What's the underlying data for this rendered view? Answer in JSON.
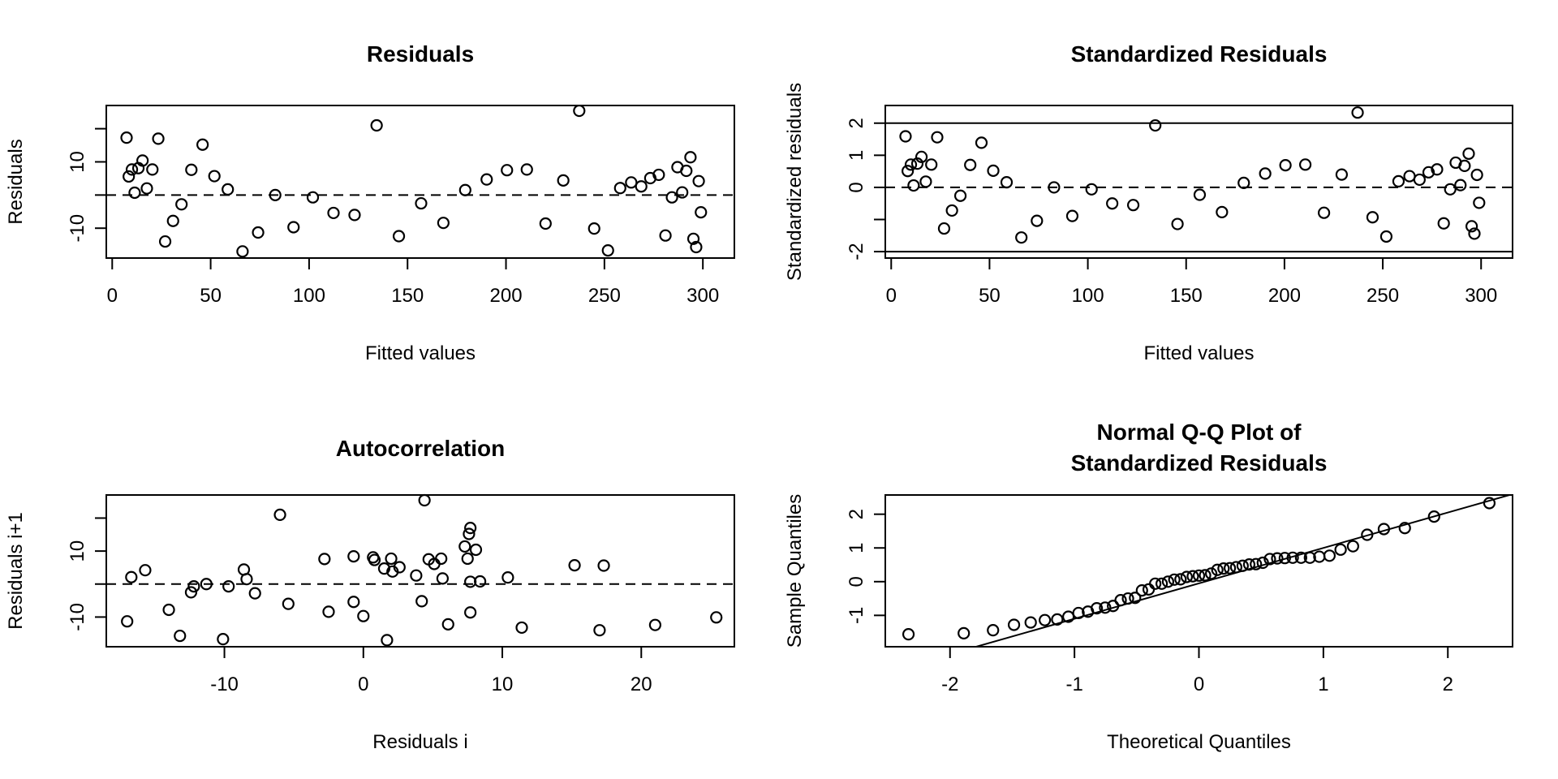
{
  "chart_data": [
    {
      "id": "residuals",
      "type": "scatter",
      "title": "Residuals",
      "xlabel": "Fitted values",
      "ylabel": "Residuals",
      "xlim": [
        -3,
        316
      ],
      "ylim": [
        -19,
        27
      ],
      "xticks": [
        0,
        50,
        100,
        150,
        200,
        250,
        300
      ],
      "xtick_labels": [
        "0",
        "50",
        "100",
        "150",
        "200",
        "250",
        "300"
      ],
      "yticks": [
        -10,
        0,
        10,
        20
      ],
      "ytick_labels": [
        "-10",
        "",
        "10",
        ""
      ],
      "hlines": [
        {
          "y": 0,
          "style": "dashed"
        }
      ],
      "x": [
        7.3,
        8.4,
        10.0,
        11.4,
        13.3,
        15.4,
        17.6,
        20.4,
        23.4,
        26.9,
        30.9,
        35.2,
        40.2,
        45.9,
        51.9,
        58.7,
        66.2,
        74.1,
        82.8,
        92.1,
        101.9,
        112.4,
        123.1,
        134.3,
        145.6,
        156.9,
        168.2,
        179.3,
        190.2,
        200.5,
        210.6,
        220.1,
        229.1,
        237.2,
        244.8,
        251.8,
        258.0,
        263.6,
        268.7,
        273.3,
        277.6,
        281.0,
        284.3,
        287.1,
        289.5,
        291.6,
        293.7,
        295.2,
        296.6,
        297.9,
        299.0
      ],
      "y": [
        17.3,
        5.6,
        7.7,
        0.7,
        8.1,
        10.4,
        2.0,
        7.7,
        17.0,
        -14.0,
        -7.8,
        -2.8,
        7.6,
        15.2,
        5.7,
        1.7,
        -17.0,
        -11.3,
        0.0,
        -9.7,
        -0.7,
        -5.4,
        -6.0,
        21.0,
        -12.4,
        -2.5,
        -8.4,
        1.5,
        4.7,
        7.5,
        7.7,
        -8.6,
        4.4,
        25.4,
        -10.1,
        -16.7,
        2.1,
        3.8,
        2.6,
        5.1,
        6.1,
        -12.2,
        -0.7,
        8.4,
        0.8,
        7.3,
        11.4,
        -13.2,
        -15.7,
        4.2,
        -5.2
      ]
    },
    {
      "id": "standardized",
      "type": "scatter",
      "title": "Standardized Residuals",
      "xlabel": "Fitted values",
      "ylabel": "Standardized residuals",
      "xlim": [
        -3,
        316
      ],
      "ylim": [
        -2.2,
        2.55
      ],
      "xticks": [
        0,
        50,
        100,
        150,
        200,
        250,
        300
      ],
      "xtick_labels": [
        "0",
        "50",
        "100",
        "150",
        "200",
        "250",
        "300"
      ],
      "yticks": [
        -2,
        -1,
        0,
        1,
        2
      ],
      "ytick_labels": [
        "-2",
        "",
        "0",
        "1",
        "2"
      ],
      "hlines": [
        {
          "y": 0,
          "style": "dashed"
        },
        {
          "y": 2,
          "style": "solid"
        },
        {
          "y": -2,
          "style": "solid"
        }
      ],
      "x": [
        7.3,
        8.4,
        10.0,
        11.4,
        13.3,
        15.4,
        17.6,
        20.4,
        23.4,
        26.9,
        30.9,
        35.2,
        40.2,
        45.9,
        51.9,
        58.7,
        66.2,
        74.1,
        82.8,
        92.1,
        101.9,
        112.4,
        123.1,
        134.3,
        145.6,
        156.9,
        168.2,
        179.3,
        190.2,
        200.5,
        210.6,
        220.1,
        229.1,
        237.2,
        244.8,
        251.8,
        258.0,
        263.6,
        268.7,
        273.3,
        277.6,
        281.0,
        284.3,
        287.1,
        289.5,
        291.6,
        293.7,
        295.2,
        296.6,
        297.9,
        299.0
      ],
      "y": [
        1.59,
        0.51,
        0.71,
        0.06,
        0.74,
        0.95,
        0.18,
        0.71,
        1.56,
        -1.28,
        -0.72,
        -0.26,
        0.7,
        1.39,
        0.52,
        0.16,
        -1.56,
        -1.04,
        0.0,
        -0.89,
        -0.06,
        -0.5,
        -0.55,
        1.93,
        -1.14,
        -0.23,
        -0.77,
        0.14,
        0.43,
        0.69,
        0.71,
        -0.79,
        0.4,
        2.33,
        -0.93,
        -1.53,
        0.19,
        0.35,
        0.24,
        0.47,
        0.56,
        -1.12,
        -0.06,
        0.77,
        0.07,
        0.67,
        1.05,
        -1.21,
        -1.44,
        0.39,
        -0.48
      ]
    },
    {
      "id": "autocorrelation",
      "type": "scatter",
      "title": "Autocorrelation",
      "xlabel": "Residuals i",
      "ylabel": "Residuals i+1",
      "xlim": [
        -18.5,
        26.7
      ],
      "ylim": [
        -19,
        27
      ],
      "xticks": [
        -10,
        0,
        10,
        20
      ],
      "xtick_labels": [
        "-10",
        "0",
        "10",
        "20"
      ],
      "yticks": [
        -10,
        0,
        10,
        20
      ],
      "ytick_labels": [
        "-10",
        "",
        "10",
        ""
      ],
      "hlines": [
        {
          "y": 0,
          "style": "dashed"
        }
      ],
      "note": "points are consecutive pairs (residual i, residual i+1) of the Residuals series"
    },
    {
      "id": "qq",
      "type": "scatter",
      "title": "Normal Q-Q Plot of\nStandardized Residuals",
      "title_lines": [
        "Normal Q-Q Plot of",
        "Standardized Residuals"
      ],
      "xlabel": "Theoretical Quantiles",
      "ylabel": "Sample Quantiles",
      "xlim": [
        -2.52,
        2.52
      ],
      "ylim": [
        -1.93,
        2.57
      ],
      "xticks": [
        -2,
        -1,
        0,
        1,
        2
      ],
      "xtick_labels": [
        "-2",
        "-1",
        "0",
        "1",
        "2"
      ],
      "yticks": [
        -1,
        0,
        1,
        2
      ],
      "ytick_labels": [
        "-1",
        "0",
        "1",
        "2"
      ],
      "reference_line": {
        "intercept": -0.05,
        "slope": 1.05
      },
      "note": "points are sorted standardized residuals vs. normal theoretical quantiles"
    }
  ]
}
